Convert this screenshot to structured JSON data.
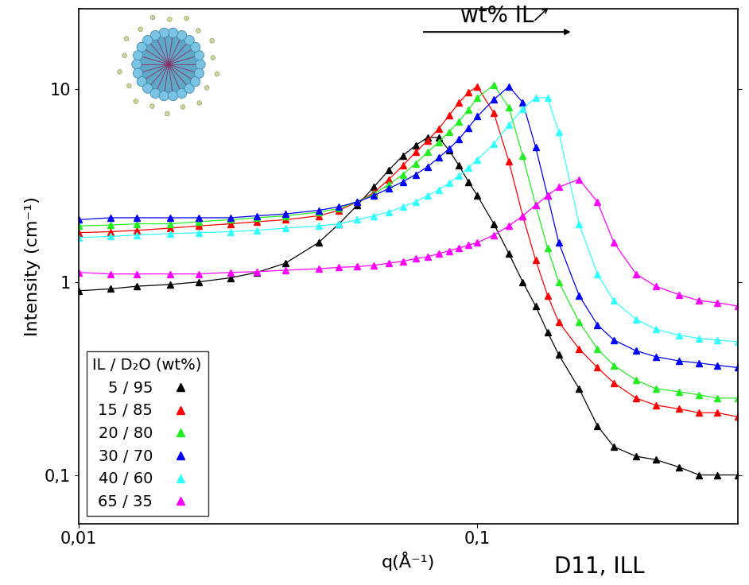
{
  "chart_data": {
    "type": "scatter",
    "xlabel": "q(Å⁻¹)",
    "ylabel": "Intensity (cm⁻¹)",
    "legend_title": "IL / D₂O (wt%)",
    "legend": "lower left",
    "log": true,
    "marker": "triangle",
    "line_style": "solid",
    "xlim": [
      0.01,
      0.45
    ],
    "ylim": [
      0.056,
      26
    ],
    "xticks": [
      {
        "value": 0.01,
        "label": "0,01"
      },
      {
        "value": 0.1,
        "label": "0,1"
      }
    ],
    "yticks": [
      {
        "value": 0.1,
        "label": "0,1"
      },
      1,
      10
    ],
    "annotations": [
      {
        "text": "wt% IL"
      },
      {
        "text": "D11, ILL"
      }
    ],
    "x": [
      0.01,
      0.012,
      0.014,
      0.017,
      0.02,
      0.024,
      0.028,
      0.033,
      0.04,
      0.045,
      0.05,
      0.055,
      0.06,
      0.065,
      0.07,
      0.075,
      0.08,
      0.085,
      0.09,
      0.095,
      0.1,
      0.11,
      0.12,
      0.13,
      0.14,
      0.15,
      0.16,
      0.18,
      0.2,
      0.22,
      0.25,
      0.28,
      0.32,
      0.36,
      0.4,
      0.45
    ],
    "series": [
      {
        "name": "5 / 95",
        "color": "#000000",
        "values": [
          0.9,
          0.92,
          0.95,
          0.97,
          1.0,
          1.05,
          1.12,
          1.25,
          1.6,
          2.0,
          2.5,
          3.1,
          3.8,
          4.5,
          5.1,
          5.6,
          5.6,
          4.8,
          4.0,
          3.3,
          2.8,
          2.0,
          1.4,
          1.0,
          0.75,
          0.55,
          0.42,
          0.28,
          0.18,
          0.14,
          0.125,
          0.12,
          0.11,
          0.1,
          0.1,
          0.1
        ]
      },
      {
        "name": "15 / 85",
        "color": "#ff0000",
        "values": [
          1.8,
          1.82,
          1.85,
          1.9,
          1.95,
          2.0,
          2.05,
          2.1,
          2.2,
          2.35,
          2.6,
          2.9,
          3.4,
          4.0,
          4.7,
          5.4,
          6.2,
          7.3,
          8.5,
          9.6,
          10.3,
          7.5,
          4.2,
          2.2,
          1.3,
          0.85,
          0.62,
          0.45,
          0.36,
          0.3,
          0.25,
          0.23,
          0.22,
          0.21,
          0.21,
          0.2
        ]
      },
      {
        "name": "20 / 80",
        "color": "#22ee22",
        "values": [
          1.95,
          1.97,
          2.0,
          2.0,
          2.05,
          2.1,
          2.15,
          2.2,
          2.3,
          2.4,
          2.6,
          2.85,
          3.2,
          3.6,
          4.1,
          4.7,
          5.3,
          6.0,
          6.8,
          7.8,
          9.0,
          10.5,
          8.0,
          4.5,
          2.5,
          1.5,
          1.0,
          0.62,
          0.45,
          0.37,
          0.31,
          0.28,
          0.27,
          0.26,
          0.25,
          0.25
        ]
      },
      {
        "name": "30 / 70",
        "color": "#0000ff",
        "values": [
          2.1,
          2.15,
          2.15,
          2.15,
          2.15,
          2.15,
          2.2,
          2.25,
          2.35,
          2.45,
          2.6,
          2.8,
          3.05,
          3.3,
          3.6,
          3.95,
          4.4,
          4.9,
          5.5,
          6.3,
          7.2,
          8.8,
          10.3,
          8.5,
          5.0,
          2.8,
          1.6,
          0.85,
          0.6,
          0.5,
          0.44,
          0.41,
          0.39,
          0.38,
          0.37,
          0.36
        ]
      },
      {
        "name": "40 / 60",
        "color": "#33ffff",
        "values": [
          1.7,
          1.72,
          1.75,
          1.78,
          1.8,
          1.82,
          1.85,
          1.9,
          1.95,
          2.0,
          2.1,
          2.2,
          2.3,
          2.45,
          2.6,
          2.8,
          3.0,
          3.25,
          3.55,
          3.9,
          4.3,
          5.2,
          6.5,
          7.9,
          9.0,
          9.0,
          6.0,
          2.0,
          1.1,
          0.8,
          0.64,
          0.57,
          0.53,
          0.51,
          0.5,
          0.49
        ]
      },
      {
        "name": "65 / 35",
        "color": "#ff00ff",
        "values": [
          1.12,
          1.1,
          1.1,
          1.1,
          1.1,
          1.12,
          1.13,
          1.15,
          1.17,
          1.19,
          1.2,
          1.22,
          1.25,
          1.28,
          1.32,
          1.35,
          1.4,
          1.45,
          1.5,
          1.55,
          1.6,
          1.75,
          1.95,
          2.2,
          2.5,
          2.8,
          3.1,
          3.4,
          2.6,
          1.6,
          1.1,
          0.95,
          0.86,
          0.8,
          0.78,
          0.75
        ]
      }
    ]
  }
}
